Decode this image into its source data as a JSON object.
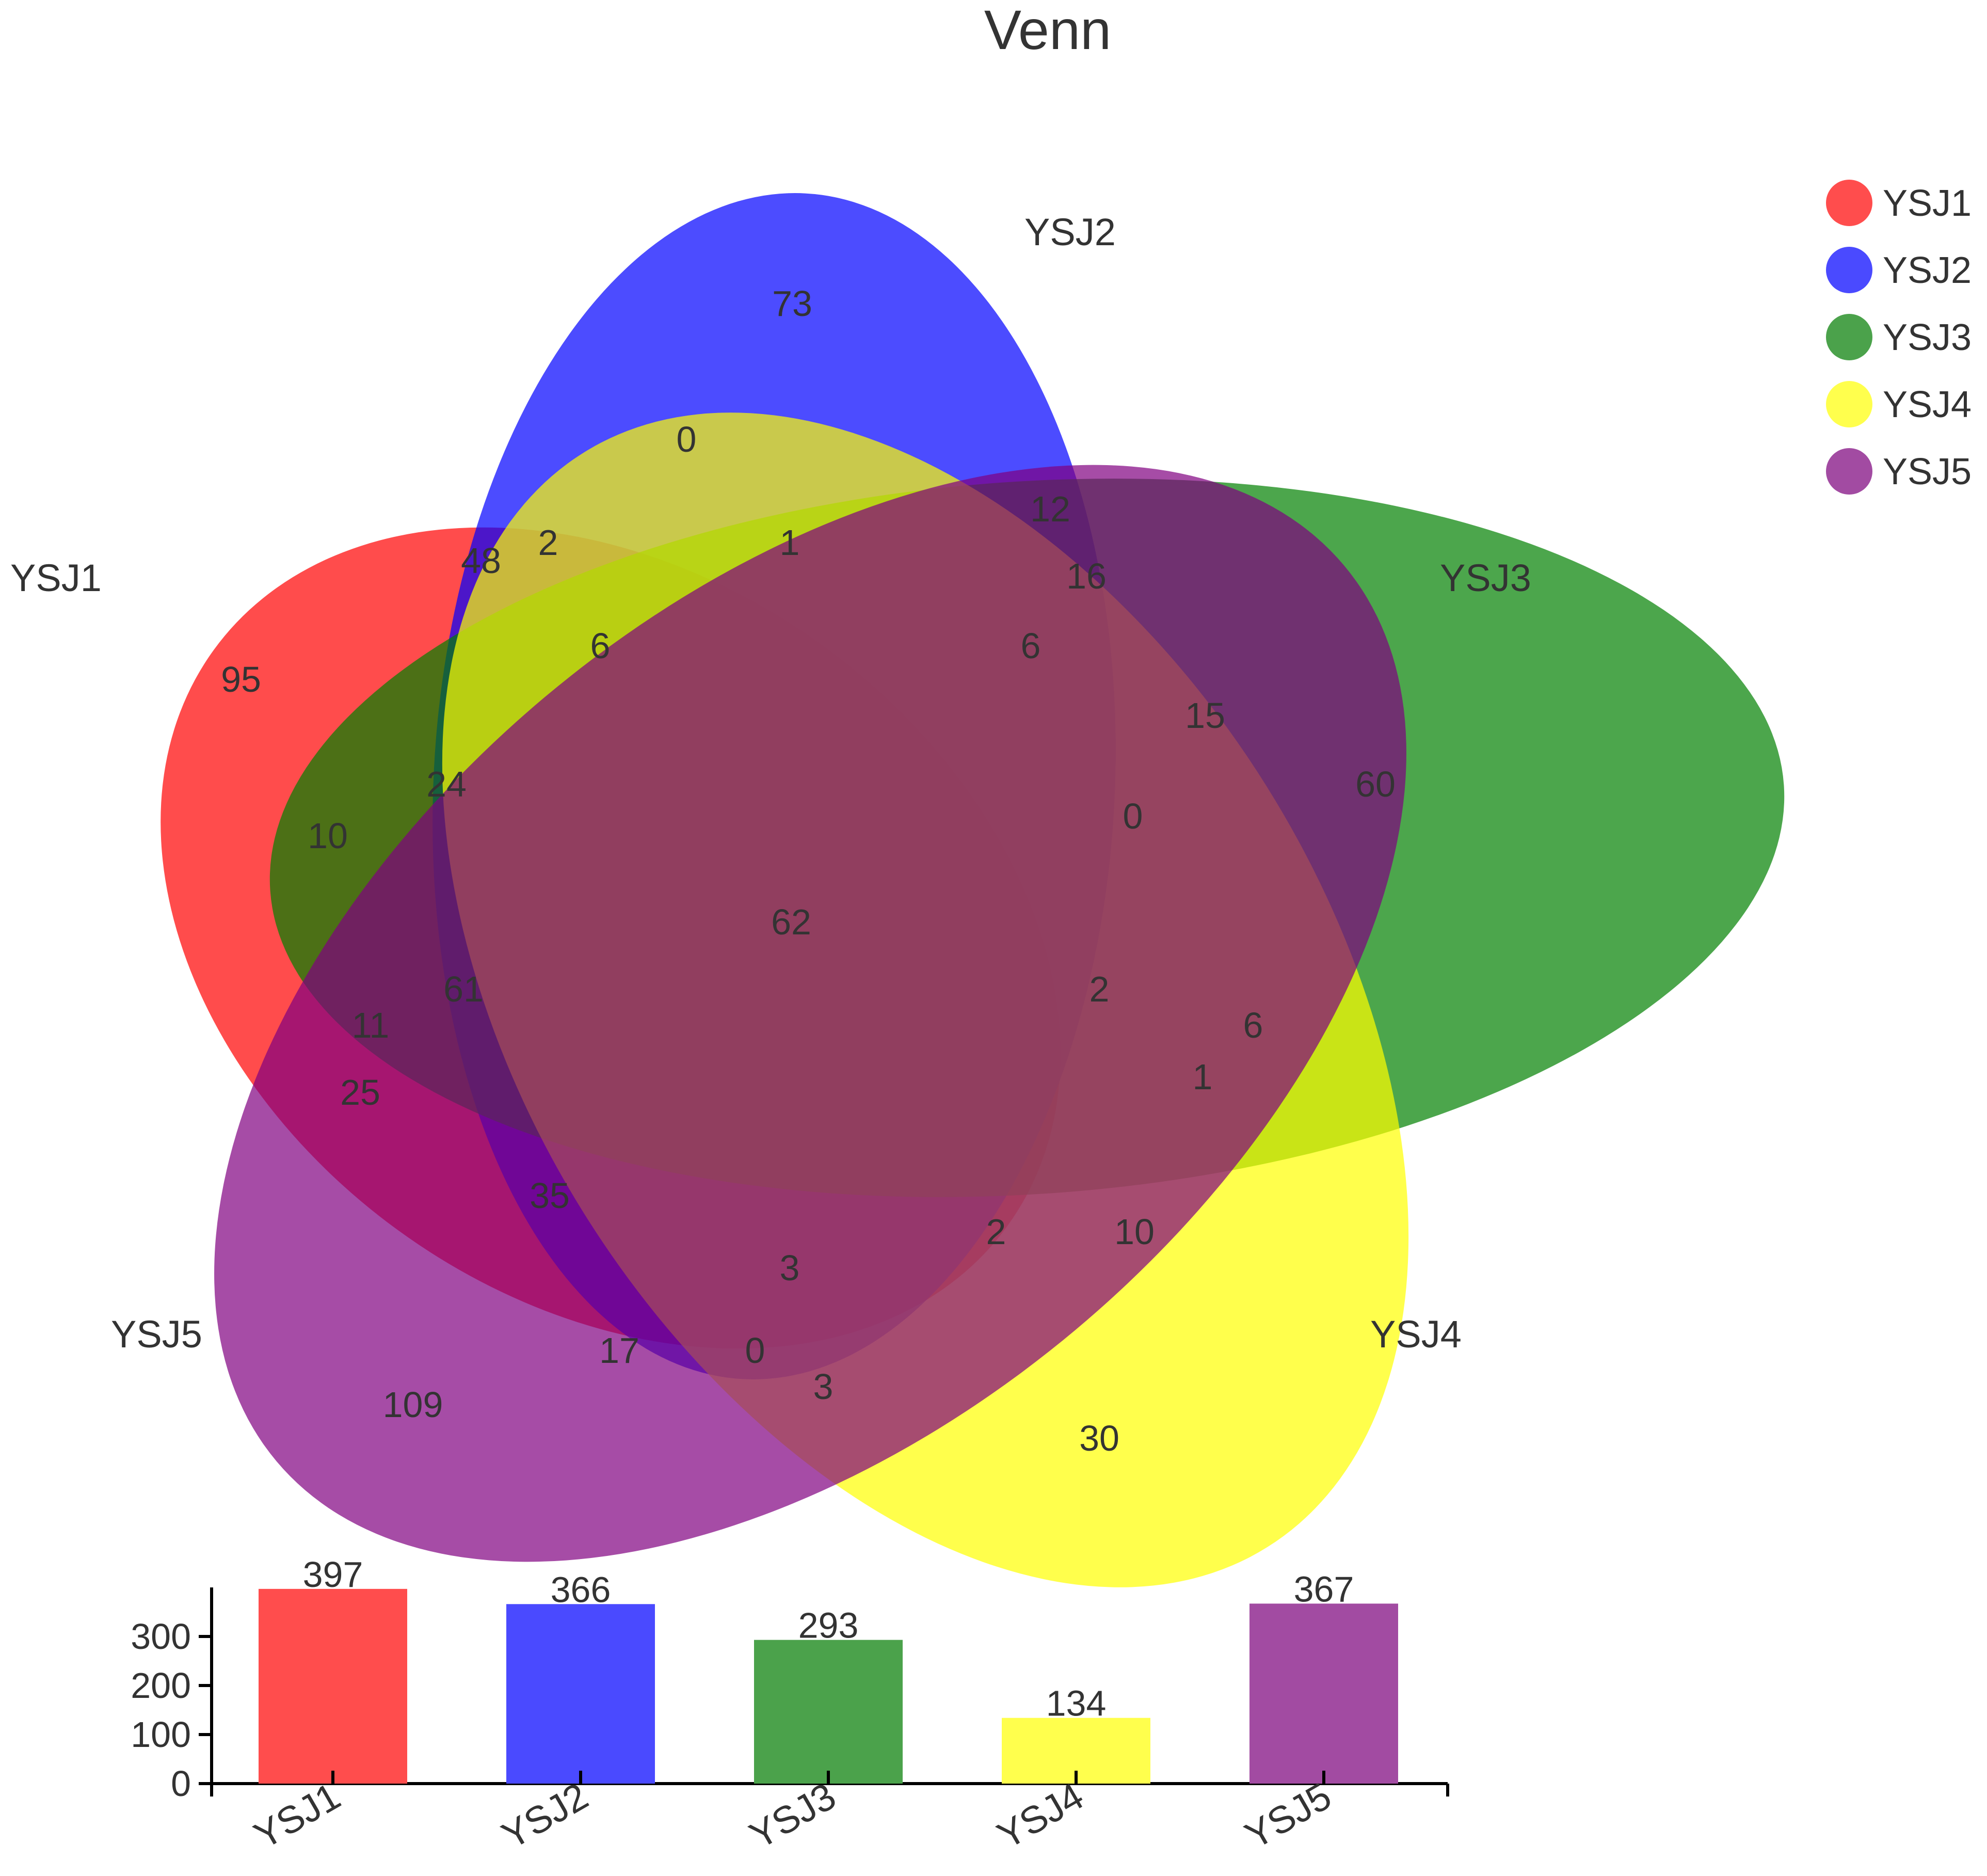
{
  "chart_data": [
    {
      "type": "venn",
      "title": "Venn",
      "sets": [
        {
          "name": "YSJ1",
          "color": "#ff0000",
          "opacity": 0.7
        },
        {
          "name": "YSJ2",
          "color": "#0000ff",
          "opacity": 0.7
        },
        {
          "name": "YSJ3",
          "color": "#008000",
          "opacity": 0.7
        },
        {
          "name": "YSJ4",
          "color": "#ffff00",
          "opacity": 0.7
        },
        {
          "name": "YSJ5",
          "color": "#800080",
          "opacity": 0.7
        }
      ],
      "legend": {
        "placement": "top-right",
        "items": [
          "YSJ1",
          "YSJ2",
          "YSJ3",
          "YSJ4",
          "YSJ5"
        ]
      },
      "region_counts": [
        "73",
        "0",
        "12",
        "1",
        "2",
        "48",
        "16",
        "6",
        "6",
        "95",
        "24",
        "15",
        "60",
        "10",
        "0",
        "62",
        "61",
        "2",
        "11",
        "6",
        "25",
        "1",
        "35",
        "2",
        "10",
        "3",
        "17",
        "0",
        "3",
        "109",
        "30"
      ]
    },
    {
      "type": "bar",
      "categories": [
        "YSJ1",
        "YSJ2",
        "YSJ3",
        "YSJ4",
        "YSJ5"
      ],
      "values": [
        397,
        366,
        293,
        134,
        367
      ],
      "colors": [
        "#ff4d4d",
        "#4a4aff",
        "#4ba24b",
        "#ffff4d",
        "#a24ba2"
      ],
      "yticks": [
        "0",
        "100",
        "200",
        "300"
      ],
      "ylim": [
        0,
        400
      ],
      "xlabel": "",
      "ylabel": ""
    }
  ]
}
